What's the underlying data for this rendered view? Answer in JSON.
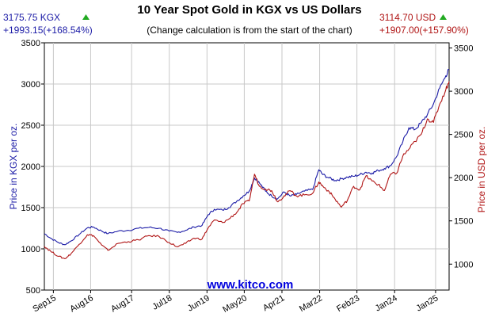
{
  "chart_data": {
    "type": "line",
    "title": "10 Year Spot Gold in KGX vs US Dollars",
    "subtitle": "(Change calculation is from the start of the chart)",
    "watermark": "www.kitco.com",
    "left_summary": {
      "price": "3175.75 KGX",
      "change": "+1993.15(+168.54%)"
    },
    "right_summary": {
      "price": "3114.70 USD",
      "change": "+1907.00(+157.90%)"
    },
    "up_arrow_color": "#22aa22",
    "left_axis": {
      "label": "Price in KGX per oz.",
      "min": 500,
      "max": 3500,
      "ticks": [
        500,
        1000,
        1500,
        2000,
        2500,
        3000,
        3500
      ],
      "color": "#1a1aa6"
    },
    "right_axis": {
      "label": "Price in USD per oz.",
      "min": 700,
      "max": 3560,
      "ticks": [
        1000,
        1500,
        2000,
        2500,
        3000,
        3500
      ],
      "color": "#b01515"
    },
    "x_range": [
      2015.45,
      2025.33
    ],
    "x_ticks": [
      {
        "label": "Sep15",
        "x": 2015.67
      },
      {
        "label": "Aug16",
        "x": 2016.58
      },
      {
        "label": "Aug17",
        "x": 2017.58
      },
      {
        "label": "Jul18",
        "x": 2018.5
      },
      {
        "label": "Jun19",
        "x": 2019.42
      },
      {
        "label": "May20",
        "x": 2020.33
      },
      {
        "label": "Apr21",
        "x": 2021.25
      },
      {
        "label": "Mar22",
        "x": 2022.17
      },
      {
        "label": "Feb23",
        "x": 2023.08
      },
      {
        "label": "Jan24",
        "x": 2024.0
      },
      {
        "label": "Jan25",
        "x": 2025.0
      }
    ],
    "grid": true,
    "series": [
      {
        "color": "#1a1aa6",
        "axis": "left",
        "points": [
          [
            2015.45,
            1185
          ],
          [
            2015.6,
            1130
          ],
          [
            2015.8,
            1075
          ],
          [
            2015.95,
            1050
          ],
          [
            2016.1,
            1095
          ],
          [
            2016.3,
            1175
          ],
          [
            2016.5,
            1255
          ],
          [
            2016.65,
            1265
          ],
          [
            2016.85,
            1215
          ],
          [
            2017.0,
            1185
          ],
          [
            2017.25,
            1215
          ],
          [
            2017.5,
            1225
          ],
          [
            2017.75,
            1250
          ],
          [
            2018.0,
            1260
          ],
          [
            2018.25,
            1250
          ],
          [
            2018.5,
            1215
          ],
          [
            2018.7,
            1200
          ],
          [
            2018.9,
            1225
          ],
          [
            2019.1,
            1265
          ],
          [
            2019.3,
            1285
          ],
          [
            2019.45,
            1415
          ],
          [
            2019.6,
            1480
          ],
          [
            2019.8,
            1470
          ],
          [
            2019.95,
            1500
          ],
          [
            2020.15,
            1580
          ],
          [
            2020.3,
            1640
          ],
          [
            2020.45,
            1700
          ],
          [
            2020.58,
            1860
          ],
          [
            2020.7,
            1800
          ],
          [
            2020.85,
            1700
          ],
          [
            2021.0,
            1640
          ],
          [
            2021.15,
            1610
          ],
          [
            2021.3,
            1690
          ],
          [
            2021.45,
            1640
          ],
          [
            2021.6,
            1660
          ],
          [
            2021.8,
            1700
          ],
          [
            2022.0,
            1720
          ],
          [
            2022.15,
            1960
          ],
          [
            2022.25,
            1900
          ],
          [
            2022.4,
            1860
          ],
          [
            2022.55,
            1830
          ],
          [
            2022.7,
            1850
          ],
          [
            2022.85,
            1870
          ],
          [
            2023.0,
            1880
          ],
          [
            2023.15,
            1900
          ],
          [
            2023.3,
            1930
          ],
          [
            2023.45,
            1920
          ],
          [
            2023.6,
            1950
          ],
          [
            2023.75,
            1975
          ],
          [
            2023.9,
            2010
          ],
          [
            2024.05,
            2120
          ],
          [
            2024.2,
            2300
          ],
          [
            2024.35,
            2470
          ],
          [
            2024.5,
            2450
          ],
          [
            2024.65,
            2530
          ],
          [
            2024.8,
            2630
          ],
          [
            2024.95,
            2760
          ],
          [
            2025.1,
            2950
          ],
          [
            2025.25,
            3100
          ],
          [
            2025.33,
            3176
          ]
        ]
      },
      {
        "color": "#b01515",
        "axis": "right",
        "points": [
          [
            2015.45,
            1207
          ],
          [
            2015.6,
            1150
          ],
          [
            2015.8,
            1090
          ],
          [
            2015.95,
            1062
          ],
          [
            2016.1,
            1120
          ],
          [
            2016.3,
            1230
          ],
          [
            2016.5,
            1340
          ],
          [
            2016.65,
            1330
          ],
          [
            2016.85,
            1220
          ],
          [
            2017.0,
            1160
          ],
          [
            2017.25,
            1240
          ],
          [
            2017.5,
            1260
          ],
          [
            2017.75,
            1280
          ],
          [
            2018.0,
            1330
          ],
          [
            2018.25,
            1320
          ],
          [
            2018.5,
            1250
          ],
          [
            2018.7,
            1200
          ],
          [
            2018.9,
            1240
          ],
          [
            2019.1,
            1300
          ],
          [
            2019.3,
            1290
          ],
          [
            2019.45,
            1420
          ],
          [
            2019.6,
            1510
          ],
          [
            2019.8,
            1480
          ],
          [
            2019.95,
            1520
          ],
          [
            2020.15,
            1600
          ],
          [
            2020.3,
            1700
          ],
          [
            2020.45,
            1730
          ],
          [
            2020.58,
            2040
          ],
          [
            2020.7,
            1900
          ],
          [
            2020.85,
            1870
          ],
          [
            2021.0,
            1850
          ],
          [
            2021.15,
            1720
          ],
          [
            2021.3,
            1790
          ],
          [
            2021.45,
            1850
          ],
          [
            2021.6,
            1790
          ],
          [
            2021.8,
            1800
          ],
          [
            2022.0,
            1820
          ],
          [
            2022.15,
            1950
          ],
          [
            2022.25,
            1900
          ],
          [
            2022.4,
            1840
          ],
          [
            2022.55,
            1750
          ],
          [
            2022.7,
            1660
          ],
          [
            2022.85,
            1740
          ],
          [
            2023.0,
            1900
          ],
          [
            2023.15,
            1860
          ],
          [
            2023.3,
            2020
          ],
          [
            2023.45,
            1960
          ],
          [
            2023.6,
            1920
          ],
          [
            2023.75,
            1850
          ],
          [
            2023.9,
            2040
          ],
          [
            2024.05,
            2050
          ],
          [
            2024.2,
            2250
          ],
          [
            2024.35,
            2330
          ],
          [
            2024.5,
            2420
          ],
          [
            2024.65,
            2500
          ],
          [
            2024.8,
            2680
          ],
          [
            2024.95,
            2640
          ],
          [
            2025.1,
            2850
          ],
          [
            2025.25,
            3020
          ],
          [
            2025.33,
            3115
          ]
        ]
      }
    ]
  }
}
